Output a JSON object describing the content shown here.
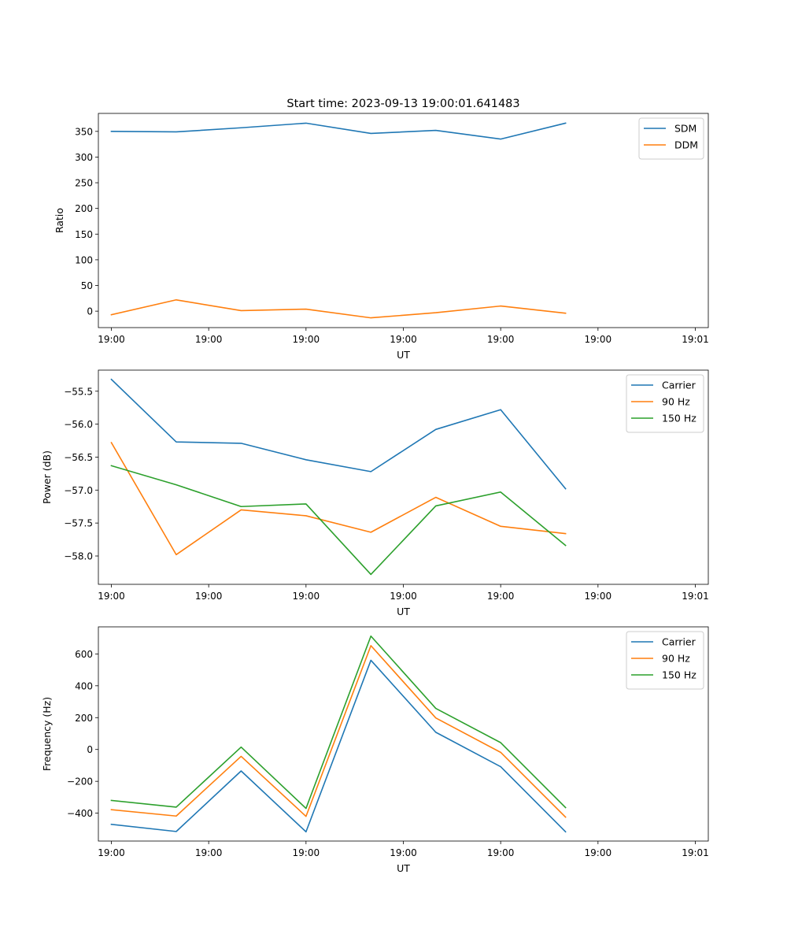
{
  "chart_data": [
    {
      "type": "line",
      "title": "Start time: 2023-09-13 19:00:01.641483",
      "xlabel": "UT",
      "ylabel": "Ratio",
      "x": [
        1,
        2,
        3,
        4,
        5,
        6,
        7,
        8
      ],
      "xlim": [
        0.8,
        10.2
      ],
      "xticks": [
        1,
        2.5,
        4,
        5.5,
        7,
        8.5,
        10
      ],
      "xtick_labels": [
        "19:00",
        "19:00",
        "19:00",
        "19:00",
        "19:00",
        "19:00",
        "19:01"
      ],
      "ylim": [
        -32,
        385
      ],
      "yticks": [
        0,
        50,
        100,
        150,
        200,
        250,
        300,
        350
      ],
      "ytick_labels": [
        "0",
        "50",
        "100",
        "150",
        "200",
        "250",
        "300",
        "350"
      ],
      "legend": "top-right",
      "grid": false,
      "series": [
        {
          "name": "SDM",
          "color": "#1f77b4",
          "values": [
            350,
            349,
            357,
            366,
            346,
            352,
            335,
            366
          ]
        },
        {
          "name": "DDM",
          "color": "#ff7f0e",
          "values": [
            -7,
            22,
            1,
            4,
            -13,
            -3,
            10,
            -4
          ]
        }
      ]
    },
    {
      "type": "line",
      "title": "",
      "xlabel": "UT",
      "ylabel": "Power (dB)",
      "x": [
        1,
        2,
        3,
        4,
        5,
        6,
        7,
        8
      ],
      "xlim": [
        0.8,
        10.2
      ],
      "xticks": [
        1,
        2.5,
        4,
        5.5,
        7,
        8.5,
        10
      ],
      "xtick_labels": [
        "19:00",
        "19:00",
        "19:00",
        "19:00",
        "19:00",
        "19:00",
        "19:01"
      ],
      "ylim": [
        -58.43,
        -55.18
      ],
      "yticks": [
        -58.0,
        -57.5,
        -57.0,
        -56.5,
        -56.0,
        -55.5
      ],
      "ytick_labels": [
        "−58.0",
        "−57.5",
        "−57.0",
        "−56.5",
        "−56.0",
        "−55.5"
      ],
      "legend": "top-right",
      "grid": false,
      "series": [
        {
          "name": "Carrier",
          "color": "#1f77b4",
          "values": [
            -55.32,
            -56.27,
            -56.29,
            -56.54,
            -56.72,
            -56.08,
            -55.78,
            -56.98
          ]
        },
        {
          "name": "90 Hz",
          "color": "#ff7f0e",
          "values": [
            -56.28,
            -57.98,
            -57.3,
            -57.39,
            -57.64,
            -57.11,
            -57.55,
            -57.66
          ]
        },
        {
          "name": "150 Hz",
          "color": "#2ca02c",
          "values": [
            -56.63,
            -56.92,
            -57.25,
            -57.21,
            -58.28,
            -57.24,
            -57.03,
            -57.84
          ]
        }
      ]
    },
    {
      "type": "line",
      "title": "",
      "xlabel": "UT",
      "ylabel": "Frequency (Hz)",
      "x": [
        1,
        2,
        3,
        4,
        5,
        6,
        7,
        8
      ],
      "xlim": [
        0.8,
        10.2
      ],
      "xticks": [
        1,
        2.5,
        4,
        5.5,
        7,
        8.5,
        10
      ],
      "xtick_labels": [
        "19:00",
        "19:00",
        "19:00",
        "19:00",
        "19:00",
        "19:00",
        "19:01"
      ],
      "ylim": [
        -575,
        770
      ],
      "yticks": [
        -400,
        -200,
        0,
        200,
        400,
        600
      ],
      "ytick_labels": [
        "−400",
        "−200",
        "0",
        "200",
        "400",
        "600"
      ],
      "legend": "top-right",
      "grid": false,
      "series": [
        {
          "name": "Carrier",
          "color": "#1f77b4",
          "values": [
            -470,
            -515,
            -135,
            -517,
            560,
            108,
            -108,
            -517
          ]
        },
        {
          "name": "90 Hz",
          "color": "#ff7f0e",
          "values": [
            -378,
            -418,
            -43,
            -420,
            652,
            198,
            -18,
            -425
          ]
        },
        {
          "name": "150 Hz",
          "color": "#2ca02c",
          "values": [
            -320,
            -362,
            15,
            -370,
            712,
            258,
            43,
            -365
          ]
        }
      ]
    }
  ]
}
